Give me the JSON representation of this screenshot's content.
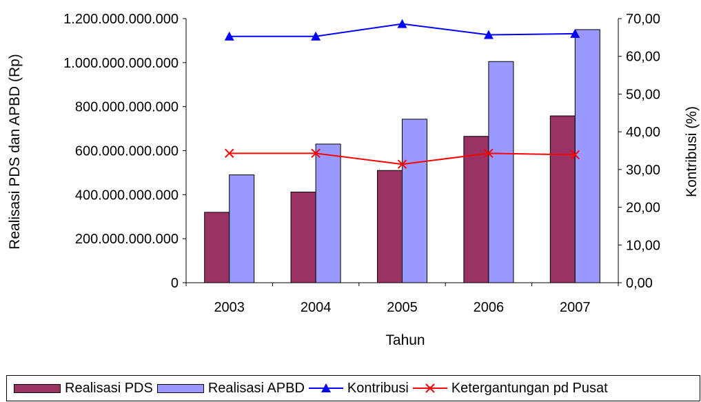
{
  "chart_data": {
    "type": "bar",
    "categories": [
      "2003",
      "2004",
      "2005",
      "2006",
      "2007"
    ],
    "xlabel": "Tahun",
    "ylabel": "Realisasi PDS dan APBD (Rp)",
    "y2label": "Kontribusi (%)",
    "ylim": [
      0,
      1200000000000
    ],
    "y2lim": [
      0,
      70
    ],
    "yticks": [
      "0",
      "200.000.000.000",
      "400.000.000.000",
      "600.000.000.000",
      "800.000.000.000",
      "1.000.000.000.000",
      "1.200.000.000.000"
    ],
    "y2ticks": [
      "0,00",
      "10,00",
      "20,00",
      "30,00",
      "40,00",
      "50,00",
      "60,00",
      "70,00"
    ],
    "grid": false,
    "legend_position": "bottom",
    "series": [
      {
        "name": "Realisasi PDS",
        "type": "bar",
        "axis": "left",
        "color": "#993366",
        "values": [
          320000000000,
          412000000000,
          510000000000,
          665000000000,
          758000000000
        ]
      },
      {
        "name": "Realisasi APBD",
        "type": "bar",
        "axis": "left",
        "color": "#9999FF",
        "values": [
          490000000000,
          630000000000,
          743000000000,
          1005000000000,
          1150000000000
        ]
      },
      {
        "name": "Kontribusi",
        "type": "line",
        "axis": "right",
        "color": "#0000FF",
        "marker": "triangle",
        "values": [
          65.3,
          65.3,
          68.6,
          65.7,
          66.0
        ]
      },
      {
        "name": "Ketergantungan pd Pusat",
        "type": "line",
        "axis": "right",
        "color": "#FF0000",
        "marker": "x",
        "values": [
          34.3,
          34.3,
          31.4,
          34.3,
          33.9
        ]
      }
    ]
  }
}
